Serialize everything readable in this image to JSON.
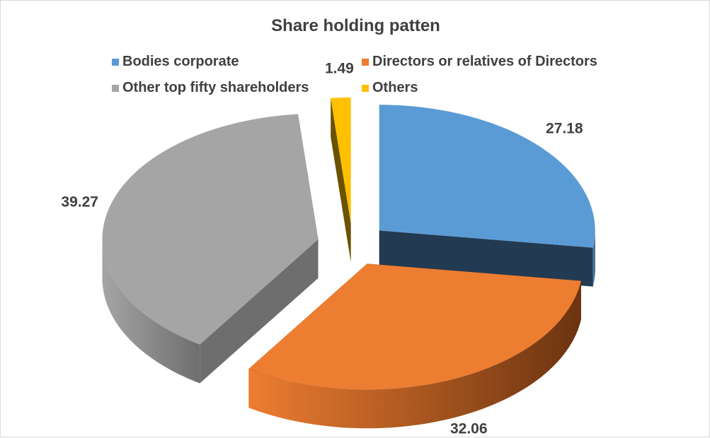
{
  "chart_data": {
    "type": "pie",
    "variant": "3d-exploded",
    "title": "Share holding patten",
    "legend_position": "top",
    "slices": [
      {
        "label": "Bodies corporate",
        "value": 27.18,
        "color": "#5b9bd5",
        "dark": "#223a52"
      },
      {
        "label": "Directors or relatives of Directors",
        "value": 32.06,
        "color": "#ed7d31",
        "dark": "#6b3310"
      },
      {
        "label": "Other top fifty shareholders",
        "value": 39.27,
        "color": "#a5a5a5",
        "dark": "#6e6e6e"
      },
      {
        "label": "Others",
        "value": 1.49,
        "color": "#ffc000",
        "dark": "#6b5200"
      }
    ]
  }
}
